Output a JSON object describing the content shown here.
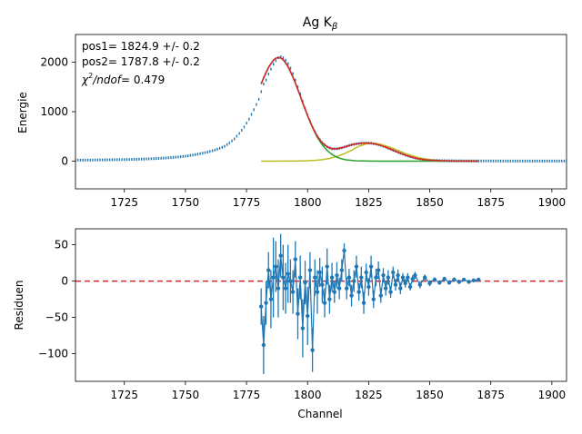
{
  "chart_data": [
    {
      "type": "line",
      "title": "Ag K",
      "title_subscript": "β",
      "xlabel": "",
      "ylabel": "Energie",
      "xlim": [
        1705,
        1906
      ],
      "ylim": [
        -560,
        2560
      ],
      "xticks": [
        1725,
        1750,
        1775,
        1800,
        1825,
        1850,
        1875,
        1900
      ],
      "yticks": [
        0,
        1000,
        2000
      ],
      "grid": false,
      "annotations": [
        {
          "text": "pos1= 1824.9 +/- 0.2"
        },
        {
          "text": "pos2= 1787.8 +/- 0.2"
        },
        {
          "prefix": "χ",
          "sup": "2",
          "suffix": "/ndof",
          "value": "= 0.479"
        }
      ],
      "measured": {
        "name": "",
        "color": "#1f77b4",
        "points": [
          [
            1705,
            20
          ],
          [
            1710,
            22
          ],
          [
            1715,
            25
          ],
          [
            1720,
            28
          ],
          [
            1725,
            32
          ],
          [
            1730,
            38
          ],
          [
            1735,
            46
          ],
          [
            1740,
            58
          ],
          [
            1745,
            75
          ],
          [
            1750,
            100
          ],
          [
            1755,
            140
          ],
          [
            1760,
            195
          ],
          [
            1763,
            240
          ],
          [
            1766,
            300
          ],
          [
            1768,
            370
          ],
          [
            1770,
            450
          ],
          [
            1772,
            560
          ],
          [
            1774,
            690
          ],
          [
            1776,
            850
          ],
          [
            1778,
            1040
          ],
          [
            1780,
            1250
          ],
          [
            1782,
            1560
          ],
          [
            1783,
            1640
          ],
          [
            1784,
            1760
          ],
          [
            1785,
            1860
          ],
          [
            1786,
            1960
          ],
          [
            1787,
            2030
          ],
          [
            1788,
            2090
          ],
          [
            1789,
            2110
          ],
          [
            1790,
            2090
          ],
          [
            1791,
            2040
          ],
          [
            1792,
            1970
          ],
          [
            1793,
            1880
          ],
          [
            1794,
            1770
          ],
          [
            1795,
            1640
          ],
          [
            1796,
            1500
          ],
          [
            1797,
            1360
          ],
          [
            1798,
            1210
          ],
          [
            1799,
            1070
          ],
          [
            1800,
            930
          ],
          [
            1802,
            690
          ],
          [
            1804,
            500
          ],
          [
            1806,
            370
          ],
          [
            1808,
            290
          ],
          [
            1810,
            250
          ],
          [
            1812,
            250
          ],
          [
            1814,
            270
          ],
          [
            1816,
            300
          ],
          [
            1818,
            330
          ],
          [
            1820,
            350
          ],
          [
            1822,
            362
          ],
          [
            1824,
            365
          ],
          [
            1826,
            362
          ],
          [
            1828,
            345
          ],
          [
            1830,
            318
          ],
          [
            1832,
            283
          ],
          [
            1834,
            242
          ],
          [
            1836,
            200
          ],
          [
            1838,
            160
          ],
          [
            1840,
            122
          ],
          [
            1842,
            90
          ],
          [
            1844,
            64
          ],
          [
            1846,
            44
          ],
          [
            1848,
            30
          ],
          [
            1850,
            20
          ],
          [
            1855,
            10
          ],
          [
            1860,
            7
          ],
          [
            1865,
            5
          ],
          [
            1870,
            4
          ],
          [
            1880,
            3
          ],
          [
            1890,
            3
          ],
          [
            1906,
            3
          ]
        ]
      },
      "series": [
        {
          "name": "",
          "color": "#d62728",
          "x": [
            1781,
            1782,
            1783,
            1784,
            1785,
            1786,
            1787,
            1788,
            1789,
            1790,
            1791,
            1792,
            1793,
            1794,
            1795,
            1796,
            1797,
            1798,
            1799,
            1800,
            1802,
            1804,
            1806,
            1808,
            1810,
            1812,
            1814,
            1816,
            1818,
            1820,
            1822,
            1824,
            1826,
            1828,
            1830,
            1832,
            1834,
            1836,
            1838,
            1840,
            1842,
            1844,
            1846,
            1848,
            1850,
            1855,
            1860,
            1865,
            1870
          ],
          "values": [
            1560,
            1680,
            1790,
            1890,
            1970,
            2040,
            2080,
            2095,
            2085,
            2050,
            1990,
            1910,
            1810,
            1700,
            1580,
            1450,
            1320,
            1180,
            1050,
            920,
            690,
            500,
            370,
            290,
            250,
            250,
            270,
            300,
            330,
            350,
            362,
            365,
            362,
            345,
            318,
            283,
            242,
            200,
            160,
            122,
            90,
            64,
            44,
            30,
            20,
            8,
            3,
            1,
            0
          ]
        },
        {
          "name": "",
          "color": "#bcbd22",
          "x": [
            1781,
            1785,
            1790,
            1795,
            1800,
            1803,
            1806,
            1809,
            1812,
            1815,
            1818,
            1821,
            1824,
            1827,
            1830,
            1835,
            1840,
            1845,
            1850,
            1855,
            1860,
            1870
          ],
          "values": [
            0,
            0,
            1,
            3,
            8,
            16,
            30,
            55,
            95,
            150,
            220,
            300,
            350,
            365,
            340,
            260,
            155,
            75,
            30,
            10,
            3,
            0
          ]
        },
        {
          "name": "",
          "color": "#2ca02c",
          "x": [
            1781,
            1782,
            1783,
            1784,
            1785,
            1786,
            1787,
            1788,
            1789,
            1790,
            1791,
            1792,
            1793,
            1794,
            1795,
            1796,
            1797,
            1798,
            1799,
            1800,
            1802,
            1804,
            1806,
            1808,
            1810,
            1812,
            1814,
            1816,
            1820,
            1825,
            1830,
            1840,
            1850,
            1860,
            1870
          ],
          "values": [
            1560,
            1680,
            1790,
            1890,
            1970,
            2040,
            2080,
            2095,
            2085,
            2050,
            1990,
            1910,
            1810,
            1700,
            1580,
            1450,
            1320,
            1180,
            1050,
            920,
            680,
            480,
            330,
            215,
            135,
            80,
            45,
            25,
            7,
            1,
            0,
            0,
            0,
            0,
            0
          ]
        }
      ]
    },
    {
      "type": "scatter",
      "title": "",
      "xlabel": "Channel",
      "ylabel": "Residuen",
      "xlim": [
        1705,
        1906
      ],
      "ylim": [
        -138,
        72
      ],
      "xticks": [
        1725,
        1750,
        1775,
        1800,
        1825,
        1850,
        1875,
        1900
      ],
      "yticks": [
        50,
        0,
        -50,
        -100
      ],
      "grid": false,
      "reference_line": {
        "y": 0,
        "color": "#d62728",
        "style": "dashed"
      },
      "series": [
        {
          "name": "",
          "color": "#1f77b4",
          "x": [
            1781,
            1782,
            1783,
            1784,
            1785,
            1786,
            1787,
            1788,
            1789,
            1790,
            1791,
            1792,
            1793,
            1794,
            1795,
            1796,
            1797,
            1798,
            1799,
            1800,
            1801,
            1802,
            1803,
            1804,
            1805,
            1806,
            1807,
            1808,
            1809,
            1810,
            1811,
            1812,
            1813,
            1814,
            1815,
            1816,
            1817,
            1818,
            1819,
            1820,
            1821,
            1822,
            1823,
            1824,
            1825,
            1826,
            1827,
            1828,
            1829,
            1830,
            1831,
            1832,
            1833,
            1834,
            1835,
            1836,
            1837,
            1838,
            1839,
            1840,
            1841,
            1842,
            1843,
            1844,
            1846,
            1848,
            1850,
            1852,
            1854,
            1856,
            1858,
            1860,
            1862,
            1864,
            1866,
            1868,
            1870
          ],
          "values": [
            -35,
            -88,
            -30,
            15,
            -25,
            5,
            20,
            -10,
            35,
            5,
            -10,
            10,
            0,
            -15,
            30,
            -45,
            5,
            -65,
            -2,
            -48,
            15,
            -95,
            5,
            -15,
            12,
            -5,
            -30,
            20,
            -25,
            5,
            -15,
            8,
            -10,
            15,
            42,
            -10,
            5,
            -20,
            0,
            20,
            -15,
            5,
            -30,
            12,
            -8,
            20,
            -25,
            5,
            15,
            -20,
            8,
            -10,
            5,
            -15,
            12,
            -5,
            8,
            -10,
            5,
            -3,
            5,
            -8,
            3,
            8,
            -5,
            5,
            -3,
            2,
            -2,
            3,
            -2,
            2,
            -1,
            2,
            -1,
            1,
            2
          ],
          "errors": [
            25,
            40,
            30,
            25,
            40,
            55,
            35,
            40,
            30,
            45,
            35,
            40,
            30,
            30,
            25,
            35,
            30,
            40,
            30,
            40,
            25,
            30,
            25,
            30,
            20,
            25,
            20,
            25,
            20,
            20,
            15,
            18,
            15,
            15,
            10,
            15,
            12,
            15,
            15,
            15,
            12,
            15,
            15,
            12,
            12,
            15,
            12,
            12,
            12,
            10,
            10,
            10,
            10,
            8,
            8,
            8,
            8,
            8,
            6,
            6,
            6,
            5,
            5,
            5,
            5,
            4,
            4,
            3,
            3,
            3,
            3,
            3,
            3,
            2,
            2,
            2,
            2
          ]
        }
      ]
    }
  ]
}
